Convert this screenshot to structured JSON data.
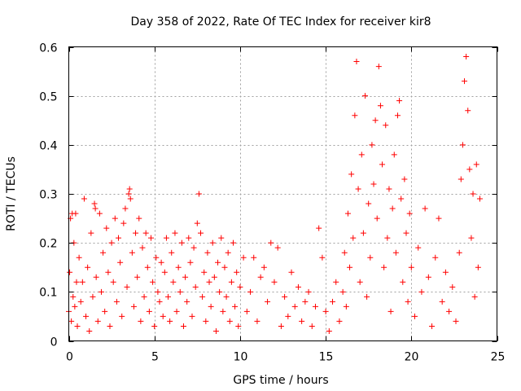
{
  "chart_data": {
    "type": "scatter",
    "title": "Day 358 of 2022, Rate Of TEC Index for receiver kir8",
    "xlabel": "GPS time / hours",
    "ylabel": "ROTI / TECUs",
    "xlim": [
      0,
      25
    ],
    "ylim": [
      0,
      0.6
    ],
    "xticks": [
      0,
      5,
      10,
      15,
      20,
      25
    ],
    "yticks": [
      0,
      0.1,
      0.2,
      0.3,
      0.4,
      0.5,
      0.6
    ],
    "xtick_labels": [
      "0",
      "5",
      "10",
      "15",
      "20",
      "25"
    ],
    "ytick_labels": [
      "0",
      "0.1",
      "0.2",
      "0.3",
      "0.4",
      "0.5",
      "0.6"
    ],
    "grid": true,
    "marker": "+",
    "color": "#ff0000",
    "series": [
      {
        "points": [
          [
            0.0,
            0.06
          ],
          [
            0.05,
            0.14
          ],
          [
            0.1,
            0.25
          ],
          [
            0.15,
            0.04
          ],
          [
            0.2,
            0.26
          ],
          [
            0.25,
            0.09
          ],
          [
            0.3,
            0.2
          ],
          [
            0.35,
            0.07
          ],
          [
            0.4,
            0.26
          ],
          [
            0.45,
            0.12
          ],
          [
            0.5,
            0.03
          ],
          [
            0.6,
            0.17
          ],
          [
            0.7,
            0.08
          ],
          [
            0.8,
            0.12
          ],
          [
            0.9,
            0.29
          ],
          [
            1.0,
            0.05
          ],
          [
            1.1,
            0.15
          ],
          [
            1.2,
            0.02
          ],
          [
            1.3,
            0.22
          ],
          [
            1.4,
            0.09
          ],
          [
            1.5,
            0.28
          ],
          [
            1.55,
            0.27
          ],
          [
            1.6,
            0.13
          ],
          [
            1.7,
            0.04
          ],
          [
            1.8,
            0.26
          ],
          [
            1.9,
            0.1
          ],
          [
            2.0,
            0.18
          ],
          [
            2.1,
            0.06
          ],
          [
            2.2,
            0.23
          ],
          [
            2.3,
            0.14
          ],
          [
            2.4,
            0.03
          ],
          [
            2.5,
            0.2
          ],
          [
            2.6,
            0.12
          ],
          [
            2.7,
            0.25
          ],
          [
            2.8,
            0.08
          ],
          [
            2.9,
            0.21
          ],
          [
            3.0,
            0.16
          ],
          [
            3.1,
            0.05
          ],
          [
            3.2,
            0.24
          ],
          [
            3.3,
            0.27
          ],
          [
            3.4,
            0.11
          ],
          [
            3.5,
            0.3
          ],
          [
            3.55,
            0.31
          ],
          [
            3.6,
            0.29
          ],
          [
            3.7,
            0.18
          ],
          [
            3.8,
            0.07
          ],
          [
            3.9,
            0.22
          ],
          [
            4.0,
            0.13
          ],
          [
            4.1,
            0.25
          ],
          [
            4.2,
            0.04
          ],
          [
            4.3,
            0.19
          ],
          [
            4.4,
            0.09
          ],
          [
            4.5,
            0.22
          ],
          [
            4.6,
            0.15
          ],
          [
            4.7,
            0.06
          ],
          [
            4.8,
            0.21
          ],
          [
            4.9,
            0.12
          ],
          [
            5.0,
            0.03
          ],
          [
            5.1,
            0.17
          ],
          [
            5.2,
            0.1
          ],
          [
            5.3,
            0.08
          ],
          [
            5.4,
            0.16
          ],
          [
            5.5,
            0.05
          ],
          [
            5.6,
            0.14
          ],
          [
            5.7,
            0.21
          ],
          [
            5.8,
            0.09
          ],
          [
            5.9,
            0.04
          ],
          [
            6.0,
            0.18
          ],
          [
            6.1,
            0.12
          ],
          [
            6.2,
            0.22
          ],
          [
            6.3,
            0.06
          ],
          [
            6.4,
            0.15
          ],
          [
            6.5,
            0.1
          ],
          [
            6.6,
            0.2
          ],
          [
            6.7,
            0.03
          ],
          [
            6.8,
            0.13
          ],
          [
            6.9,
            0.08
          ],
          [
            7.0,
            0.21
          ],
          [
            7.1,
            0.16
          ],
          [
            7.2,
            0.05
          ],
          [
            7.3,
            0.19
          ],
          [
            7.4,
            0.11
          ],
          [
            7.5,
            0.24
          ],
          [
            7.6,
            0.3
          ],
          [
            7.7,
            0.22
          ],
          [
            7.8,
            0.09
          ],
          [
            7.9,
            0.14
          ],
          [
            8.0,
            0.04
          ],
          [
            8.1,
            0.18
          ],
          [
            8.2,
            0.12
          ],
          [
            8.3,
            0.07
          ],
          [
            8.4,
            0.2
          ],
          [
            8.5,
            0.13
          ],
          [
            8.6,
            0.02
          ],
          [
            8.7,
            0.16
          ],
          [
            8.8,
            0.1
          ],
          [
            8.9,
            0.21
          ],
          [
            9.0,
            0.06
          ],
          [
            9.1,
            0.15
          ],
          [
            9.2,
            0.09
          ],
          [
            9.3,
            0.18
          ],
          [
            9.4,
            0.04
          ],
          [
            9.5,
            0.12
          ],
          [
            9.6,
            0.2
          ],
          [
            9.7,
            0.07
          ],
          [
            9.8,
            0.14
          ],
          [
            9.9,
            0.03
          ],
          [
            10.0,
            0.11
          ],
          [
            10.2,
            0.17
          ],
          [
            10.4,
            0.06
          ],
          [
            10.6,
            0.1
          ],
          [
            10.8,
            0.17
          ],
          [
            11.0,
            0.04
          ],
          [
            11.2,
            0.13
          ],
          [
            11.4,
            0.15
          ],
          [
            11.6,
            0.08
          ],
          [
            11.8,
            0.2
          ],
          [
            12.0,
            0.12
          ],
          [
            12.2,
            0.19
          ],
          [
            12.4,
            0.03
          ],
          [
            12.6,
            0.09
          ],
          [
            12.8,
            0.05
          ],
          [
            13.0,
            0.14
          ],
          [
            13.2,
            0.07
          ],
          [
            13.4,
            0.11
          ],
          [
            13.6,
            0.04
          ],
          [
            13.8,
            0.08
          ],
          [
            14.0,
            0.1
          ],
          [
            14.2,
            0.03
          ],
          [
            14.4,
            0.07
          ],
          [
            14.6,
            0.23
          ],
          [
            14.8,
            0.17
          ],
          [
            15.0,
            0.06
          ],
          [
            15.2,
            0.02
          ],
          [
            15.4,
            0.08
          ],
          [
            15.6,
            0.12
          ],
          [
            15.8,
            0.04
          ],
          [
            16.0,
            0.1
          ],
          [
            16.1,
            0.18
          ],
          [
            16.2,
            0.07
          ],
          [
            16.3,
            0.26
          ],
          [
            16.4,
            0.15
          ],
          [
            16.5,
            0.34
          ],
          [
            16.6,
            0.21
          ],
          [
            16.7,
            0.46
          ],
          [
            16.8,
            0.57
          ],
          [
            16.9,
            0.31
          ],
          [
            17.0,
            0.12
          ],
          [
            17.1,
            0.38
          ],
          [
            17.2,
            0.22
          ],
          [
            17.3,
            0.5
          ],
          [
            17.4,
            0.09
          ],
          [
            17.5,
            0.28
          ],
          [
            17.6,
            0.17
          ],
          [
            17.7,
            0.4
          ],
          [
            17.8,
            0.32
          ],
          [
            17.9,
            0.45
          ],
          [
            18.0,
            0.25
          ],
          [
            18.1,
            0.56
          ],
          [
            18.2,
            0.48
          ],
          [
            18.3,
            0.36
          ],
          [
            18.4,
            0.15
          ],
          [
            18.5,
            0.44
          ],
          [
            18.6,
            0.21
          ],
          [
            18.7,
            0.31
          ],
          [
            18.8,
            0.06
          ],
          [
            18.9,
            0.27
          ],
          [
            19.0,
            0.38
          ],
          [
            19.1,
            0.18
          ],
          [
            19.2,
            0.46
          ],
          [
            19.3,
            0.49
          ],
          [
            19.4,
            0.29
          ],
          [
            19.5,
            0.12
          ],
          [
            19.6,
            0.33
          ],
          [
            19.7,
            0.22
          ],
          [
            19.8,
            0.08
          ],
          [
            19.9,
            0.26
          ],
          [
            20.0,
            0.15
          ],
          [
            20.2,
            0.05
          ],
          [
            20.4,
            0.19
          ],
          [
            20.6,
            0.1
          ],
          [
            20.8,
            0.27
          ],
          [
            21.0,
            0.13
          ],
          [
            21.2,
            0.03
          ],
          [
            21.4,
            0.17
          ],
          [
            21.6,
            0.25
          ],
          [
            21.8,
            0.08
          ],
          [
            22.0,
            0.14
          ],
          [
            22.2,
            0.06
          ],
          [
            22.4,
            0.11
          ],
          [
            22.6,
            0.04
          ],
          [
            22.8,
            0.18
          ],
          [
            22.9,
            0.33
          ],
          [
            23.0,
            0.4
          ],
          [
            23.1,
            0.53
          ],
          [
            23.2,
            0.58
          ],
          [
            23.3,
            0.47
          ],
          [
            23.4,
            0.35
          ],
          [
            23.5,
            0.21
          ],
          [
            23.6,
            0.3
          ],
          [
            23.7,
            0.09
          ],
          [
            23.8,
            0.36
          ],
          [
            23.9,
            0.15
          ],
          [
            24.0,
            0.29
          ]
        ]
      }
    ]
  }
}
